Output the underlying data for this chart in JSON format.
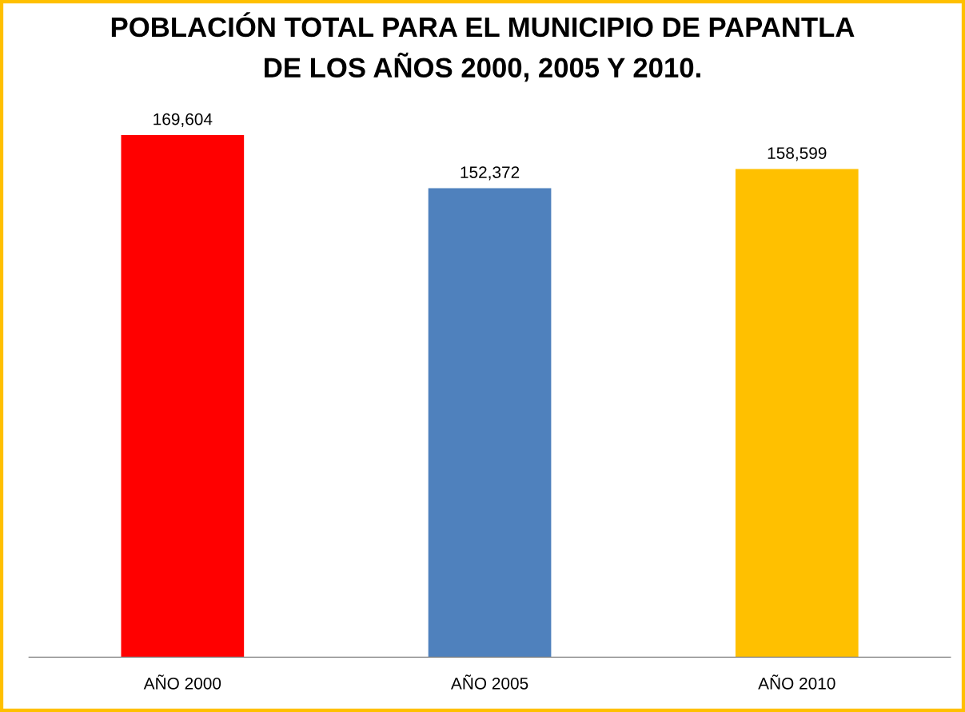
{
  "chart_data": {
    "type": "bar",
    "title": "POBLACIÓN TOTAL PARA EL MUNICIPIO DE PAPANTLA\nDE LOS AÑOS 2000, 2005 Y 2010.",
    "categories": [
      "AÑO 2000",
      "AÑO 2005",
      "AÑO 2010"
    ],
    "values": [
      169604,
      152372,
      158599
    ],
    "colors": [
      "#ff0000",
      "#4f81bd",
      "#ffc000"
    ],
    "value_labels": [
      "169,604",
      "152,372",
      "158,599"
    ],
    "tick_labels": "x",
    "grid": false,
    "legend": false
  }
}
